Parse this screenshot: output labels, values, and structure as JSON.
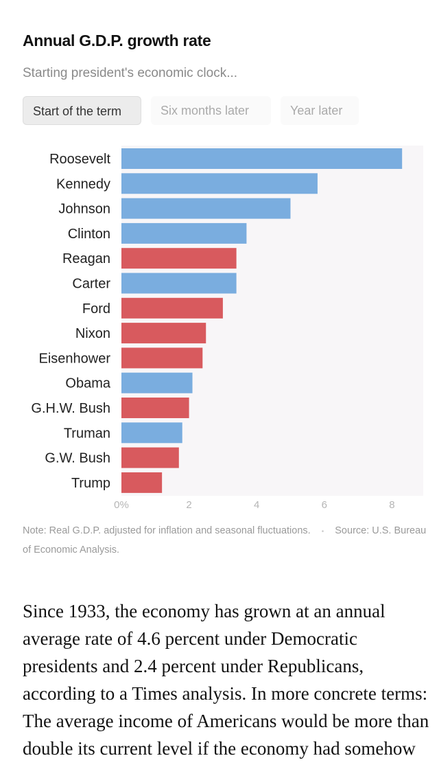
{
  "header": {
    "title": "Annual G.D.P. growth rate",
    "subtitle": "Starting president's economic clock..."
  },
  "toggle": {
    "options": [
      "Start of the term",
      "Six months later",
      "Year later"
    ],
    "selected": "Start of the term"
  },
  "colors": {
    "democrat": "#7aaddf",
    "republican": "#d85a5e",
    "plot_bg": "#f8f6f8"
  },
  "chart_data": {
    "type": "bar",
    "orientation": "horizontal",
    "categories": [
      "Roosevelt",
      "Kennedy",
      "Johnson",
      "Clinton",
      "Reagan",
      "Carter",
      "Ford",
      "Nixon",
      "Eisenhower",
      "Obama",
      "G.H.W. Bush",
      "Truman",
      "G.W. Bush",
      "Trump"
    ],
    "values": [
      8.3,
      5.8,
      5.0,
      3.7,
      3.4,
      3.4,
      3.0,
      2.5,
      2.4,
      2.1,
      2.0,
      1.8,
      1.7,
      1.2
    ],
    "party": [
      "D",
      "D",
      "D",
      "D",
      "R",
      "D",
      "R",
      "R",
      "R",
      "D",
      "R",
      "D",
      "R",
      "R"
    ],
    "xlim": [
      0,
      9
    ],
    "xticks": [
      0,
      2,
      4,
      6,
      8
    ],
    "xtick_labels": [
      "0%",
      "2",
      "4",
      "6",
      "8"
    ],
    "unit": "%",
    "grid": false
  },
  "note": {
    "text": "Note: Real G.D.P. adjusted for inflation and seasonal fluctuations.",
    "separator": "•",
    "source": "Source: U.S. Bureau of Economic Analysis."
  },
  "article": {
    "paragraph": "Since 1933, the economy has grown at an annual average rate of 4.6 percent under Democratic presidents and 2.4 percent under Republicans, according to a Times analysis. In more concrete terms: The average income of Americans would be more than double its current level if the economy had somehow"
  }
}
